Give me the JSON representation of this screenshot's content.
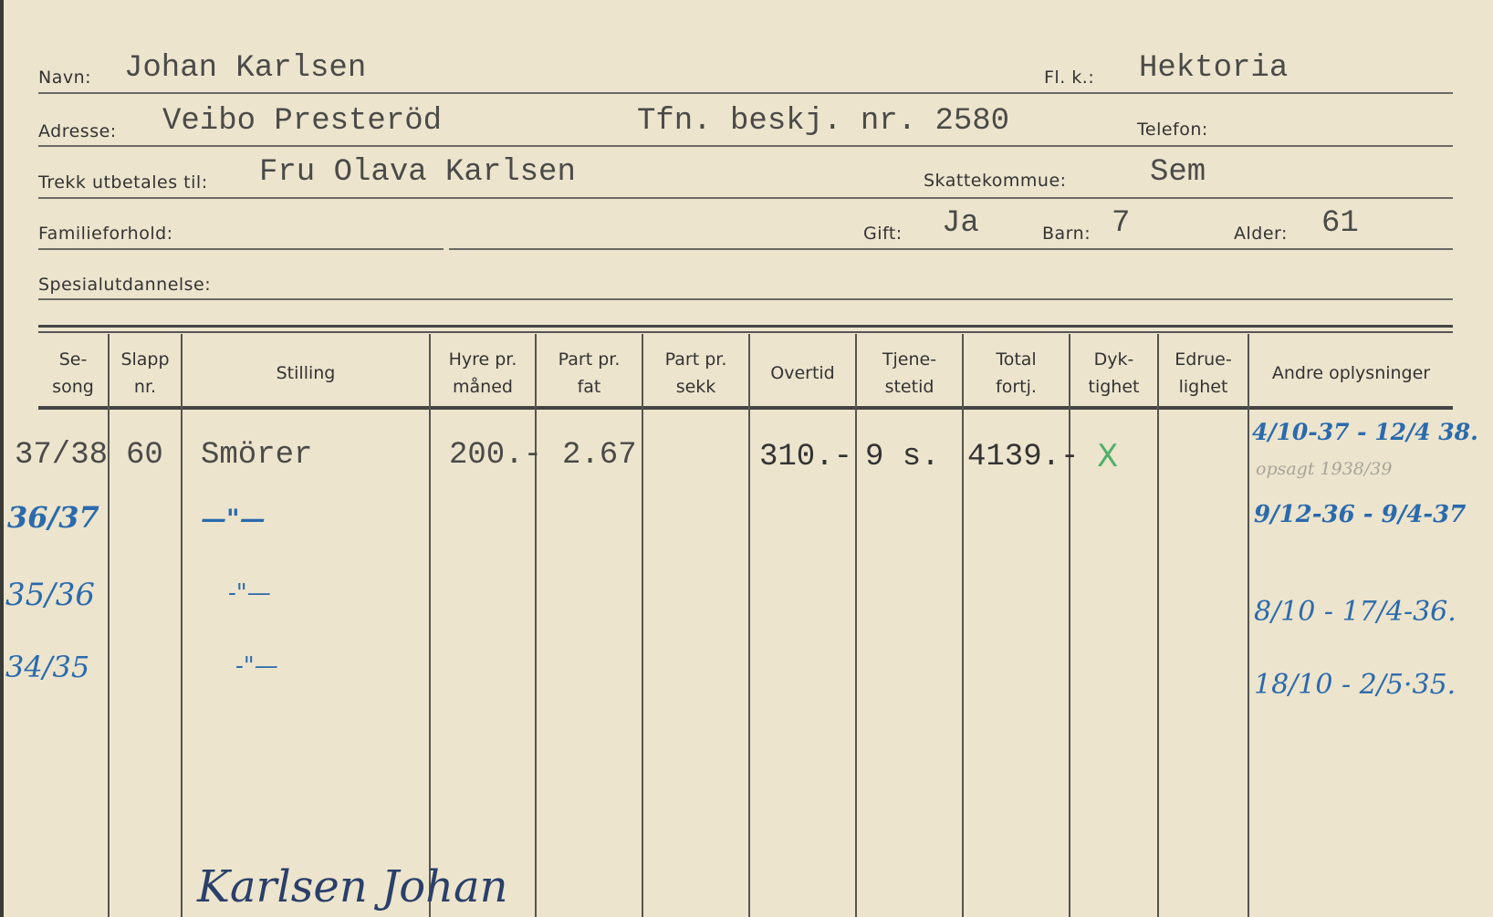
{
  "fields": {
    "navn": {
      "label": "Navn:",
      "value": "Johan Karlsen"
    },
    "fl_k": {
      "label": "Fl. k.:",
      "value": "Hektoria"
    },
    "adresse": {
      "label": "Adresse:",
      "value": "Veibo Presteröd",
      "extra": "Tfn. beskj. nr. 2580"
    },
    "telefon": {
      "label": "Telefon:",
      "value": ""
    },
    "trekk": {
      "label": "Trekk utbetales til:",
      "value": "Fru Olava Karlsen"
    },
    "skattekommune": {
      "label": "Skattekommue:",
      "value": "Sem"
    },
    "familieforhold": {
      "label": "Familieforhold:",
      "value": ""
    },
    "gift": {
      "label": "Gift:",
      "value": "Ja"
    },
    "barn": {
      "label": "Barn:",
      "value": "7"
    },
    "alder": {
      "label": "Alder:",
      "value": "61"
    },
    "spesialutdannelse": {
      "label": "Spesialutdannelse:",
      "value": ""
    }
  },
  "table": {
    "headers": [
      {
        "l1": "Se-",
        "l2": "song"
      },
      {
        "l1": "Slapp",
        "l2": "nr."
      },
      {
        "l1": "Stilling",
        "l2": ""
      },
      {
        "l1": "Hyre pr.",
        "l2": "måned"
      },
      {
        "l1": "Part pr.",
        "l2": "fat"
      },
      {
        "l1": "Part pr.",
        "l2": "sekk"
      },
      {
        "l1": "Overtid",
        "l2": ""
      },
      {
        "l1": "Tjene-",
        "l2": "stetid"
      },
      {
        "l1": "Total",
        "l2": "fortj."
      },
      {
        "l1": "Dyk-",
        "l2": "tighet"
      },
      {
        "l1": "Edrue-",
        "l2": "lighet"
      },
      {
        "l1": "Andre oplysninger",
        "l2": ""
      }
    ],
    "typed_row": {
      "sesong": "37/38",
      "slapp": "60",
      "stilling": "Smörer",
      "hyre": "200.-",
      "part_fat": "2.67",
      "overtid": "310.-",
      "tjenestetid": "9 s.",
      "total": "4139.-",
      "dyktighet": "X"
    },
    "handwritten_rows": [
      {
        "sesong": "36/37",
        "stilling": "—\"—",
        "andre": "9/12-36 - 9/4-37"
      },
      {
        "sesong": "35/36",
        "stilling": "-\"—",
        "andre": "8/10 - 17/4-36."
      },
      {
        "sesong": "34/35",
        "stilling": "-\"—",
        "andre": "18/10 - 2/5·35."
      }
    ],
    "andre_first": "4/10-37 - 12/4 38.",
    "pencil_note": "opsagt 1938/39"
  },
  "signature": "Karlsen Johan",
  "colors": {
    "paper": "#ece4cd",
    "ink_blue": "#2a6aad",
    "ink_green": "#4fb06a"
  }
}
